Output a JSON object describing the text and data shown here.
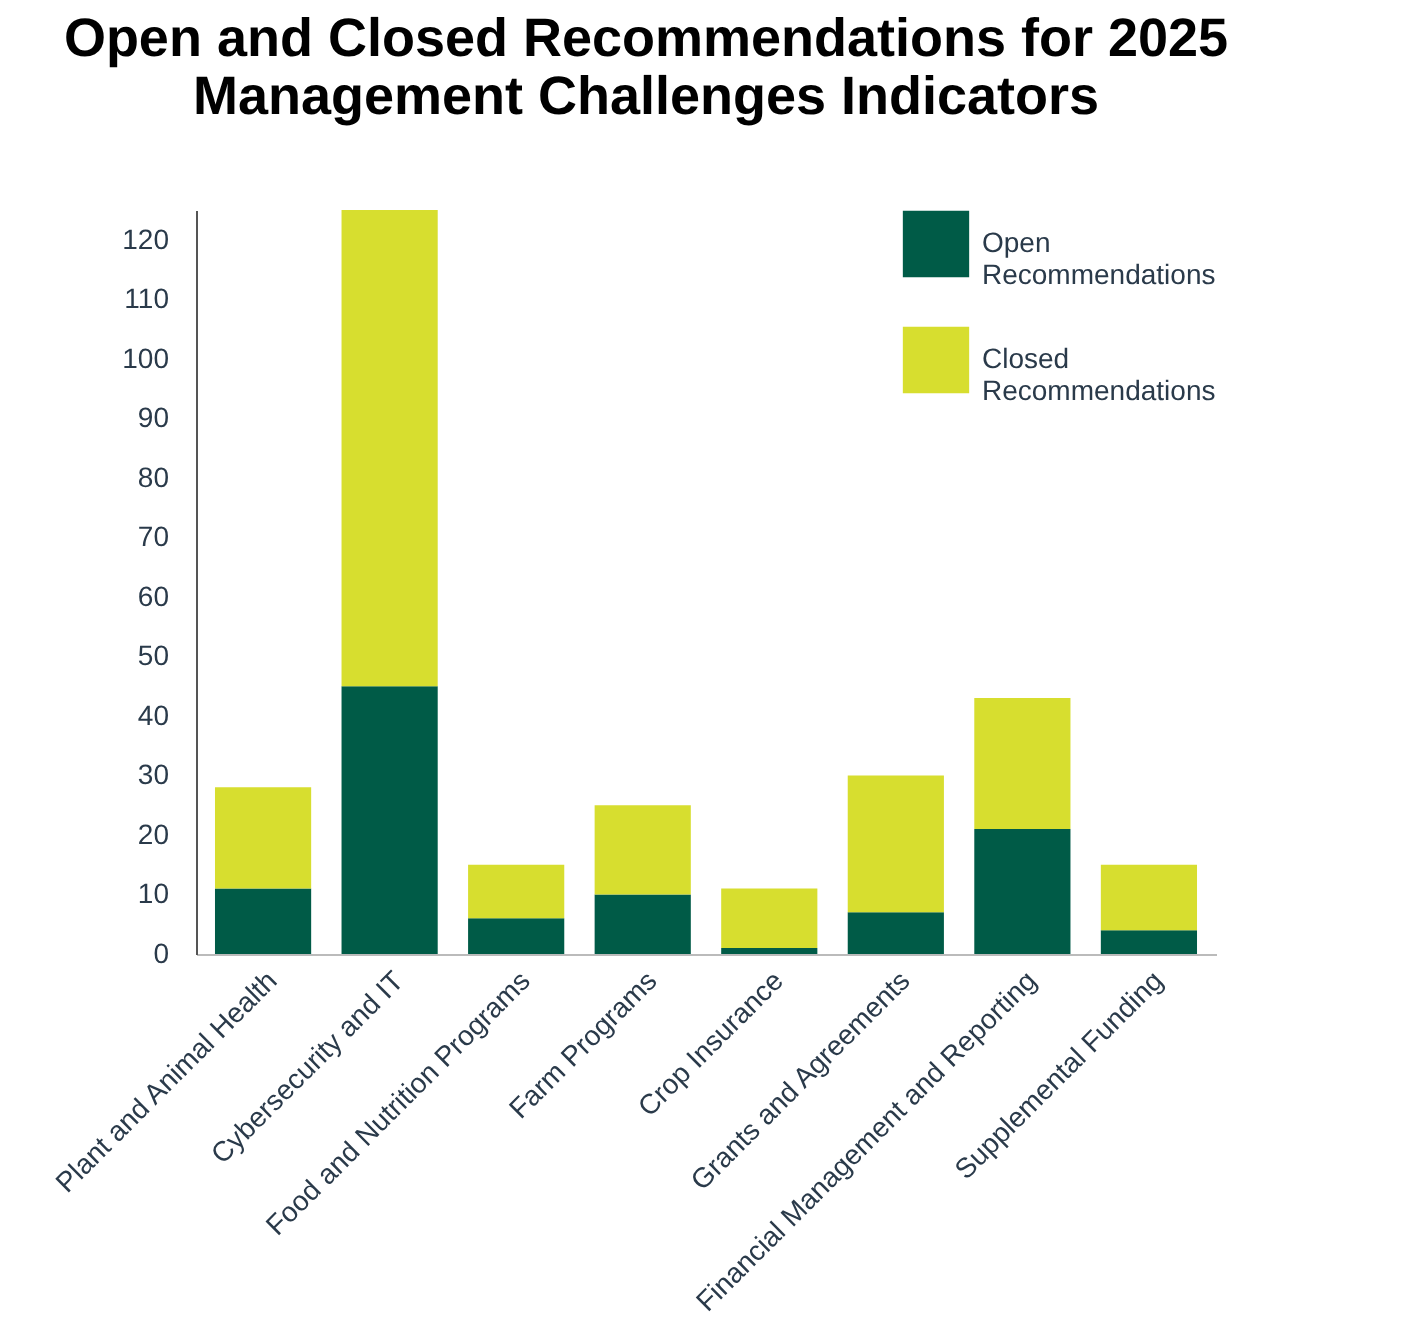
{
  "chart_data": {
    "type": "bar",
    "title": "Open and Closed Recommendations for 2025 Management Challenges Indicators",
    "categories": [
      "Plant and Animal Health",
      "Cybersecurity and IT",
      "Food and Nutrition Programs",
      "Farm Programs",
      "Crop Insurance",
      "Grants and Agreements",
      "Financial Management and Reporting",
      "Supplemental Funding"
    ],
    "series": [
      {
        "name": "Open Recommendations",
        "color": "#005b47",
        "values": [
          11,
          45,
          6,
          10,
          1,
          7,
          21,
          4
        ]
      },
      {
        "name": "Closed Recommendations",
        "color": "#d7de2f",
        "values": [
          17,
          80,
          9,
          15,
          10,
          23,
          22,
          11
        ]
      }
    ],
    "stacked": true,
    "ylim": [
      0,
      125
    ],
    "yticks": [
      0,
      10,
      20,
      30,
      40,
      50,
      60,
      70,
      80,
      90,
      100,
      110,
      120
    ],
    "grid": false,
    "legend": "top right"
  }
}
